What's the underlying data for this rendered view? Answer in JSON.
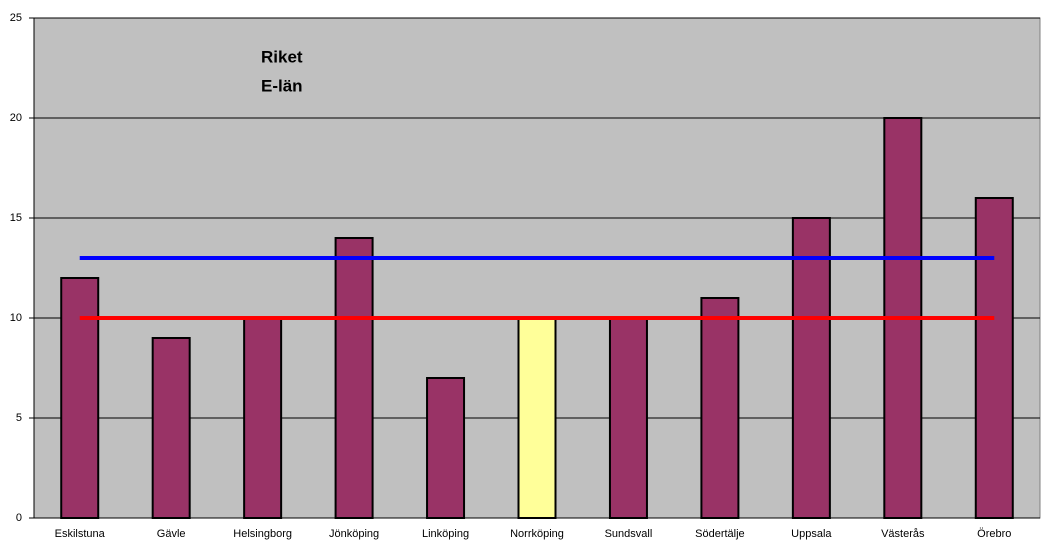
{
  "chart_data": {
    "type": "bar",
    "categories": [
      "Eskilstuna",
      "Gävle",
      "Helsingborg",
      "Jönköping",
      "Linköping",
      "Norrköping",
      "Sundsvall",
      "Södertälje",
      "Uppsala",
      "Västerås",
      "Örebro"
    ],
    "values": [
      12,
      9,
      10,
      14,
      7,
      10,
      10,
      11,
      15,
      20,
      16
    ],
    "bar_colors": [
      "#993366",
      "#993366",
      "#993366",
      "#993366",
      "#993366",
      "#ffff99",
      "#993366",
      "#993366",
      "#993366",
      "#993366",
      "#993366"
    ],
    "lines": [
      {
        "name": "Riket",
        "color": "#ff0000",
        "value": 10
      },
      {
        "name": "E-län",
        "color": "#0000ff",
        "value": 13
      }
    ],
    "ylim": [
      0,
      25
    ],
    "yticks": [
      0,
      5,
      10,
      15,
      20,
      25
    ],
    "grid": true,
    "plot_background": "#c0c0c0"
  }
}
